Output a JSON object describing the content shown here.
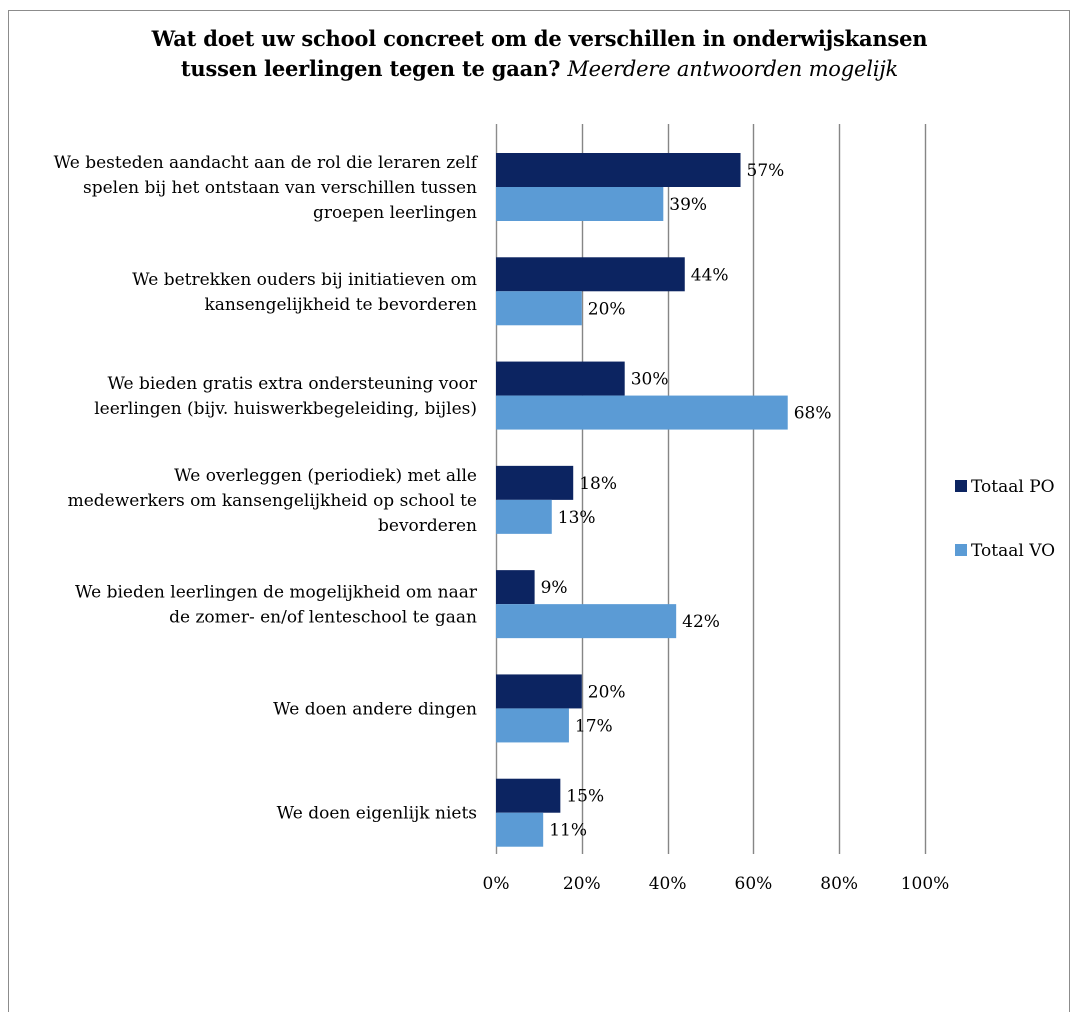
{
  "chart_data": {
    "type": "bar",
    "orientation": "horizontal",
    "title_line1": "Wat doet uw school concreet om de verschillen in onderwijskansen",
    "title_line2": "tussen leerlingen tegen te gaan?",
    "title_italic": "Meerdere antwoorden mogelijk",
    "xlim": [
      0,
      100
    ],
    "xticks": [
      "0%",
      "20%",
      "40%",
      "60%",
      "80%",
      "100%"
    ],
    "grid": true,
    "legend_position": "right",
    "categories": [
      [
        "We besteden aandacht aan de rol die leraren zelf",
        "spelen bij het ontstaan van verschillen tussen",
        "groepen leerlingen"
      ],
      [
        "We betrekken ouders bij initiatieven om",
        "kansengelijkheid te bevorderen"
      ],
      [
        "We bieden gratis extra ondersteuning voor",
        "leerlingen (bijv. huiswerkbegeleiding, bijles)"
      ],
      [
        "We overleggen (periodiek) met alle",
        "medewerkers om kansengelijkheid op school te",
        "bevorderen"
      ],
      [
        "We bieden leerlingen de mogelijkheid om naar",
        "de zomer- en/of lenteschool te gaan"
      ],
      [
        "We doen andere dingen"
      ],
      [
        "We doen eigenlijk niets"
      ]
    ],
    "series": [
      {
        "name": "Totaal PO",
        "color": "#0c2461",
        "values": [
          57,
          44,
          30,
          18,
          9,
          20,
          15
        ],
        "labels": [
          "57%",
          "44%",
          "30%",
          "18%",
          "9%",
          "20%",
          "15%"
        ]
      },
      {
        "name": "Totaal VO",
        "color": "#5b9bd5",
        "values": [
          39,
          20,
          68,
          13,
          42,
          17,
          11
        ],
        "labels": [
          "39%",
          "20%",
          "68%",
          "13%",
          "42%",
          "17%",
          "11%"
        ]
      }
    ]
  }
}
